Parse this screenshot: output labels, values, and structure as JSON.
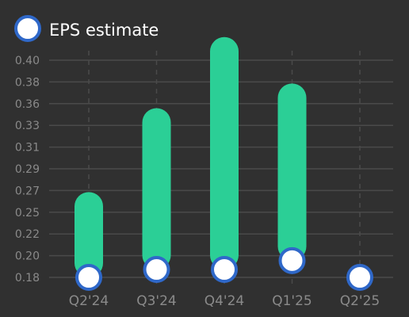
{
  "chart_data": {
    "type": "bar",
    "legend": {
      "label": "EPS estimate",
      "placement": "top-left"
    },
    "categories": [
      "Q2'24",
      "Q3'24",
      "Q4'24",
      "Q1'25",
      "Q2'25"
    ],
    "y_ticks": [
      "0.18",
      "0.20",
      "0.22",
      "0.25",
      "0.27",
      "0.29",
      "0.31",
      "0.33",
      "0.36",
      "0.38",
      "0.40"
    ],
    "ylim": [
      0.18,
      0.4
    ],
    "grid": true,
    "series": [
      {
        "kind": "bar",
        "values": [
          0.252,
          0.337,
          0.409,
          0.362,
          null
        ]
      },
      {
        "name": "EPS estimate",
        "kind": "marker",
        "values": [
          0.18,
          0.188,
          0.188,
          0.197,
          0.18
        ]
      }
    ],
    "colors": {
      "background": "#303030",
      "bar": "#2bcf96",
      "marker_fill": "#ffffff",
      "marker_stroke": "#2f68c9",
      "grid": "#4a4a4a",
      "tick_label": "#8a8a8a",
      "legend_text": "#ffffff"
    }
  }
}
